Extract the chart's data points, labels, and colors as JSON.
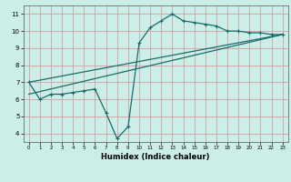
{
  "xlabel": "Humidex (Indice chaleur)",
  "bg_color": "#cceee8",
  "grid_color": "#d4a0a0",
  "line_color": "#1a6b6b",
  "xlim": [
    -0.5,
    23.5
  ],
  "ylim": [
    3.5,
    11.5
  ],
  "yticks": [
    4,
    5,
    6,
    7,
    8,
    9,
    10,
    11
  ],
  "xticks": [
    0,
    1,
    2,
    3,
    4,
    5,
    6,
    7,
    8,
    9,
    10,
    11,
    12,
    13,
    14,
    15,
    16,
    17,
    18,
    19,
    20,
    21,
    22,
    23
  ],
  "line1_x": [
    0,
    1,
    2,
    3,
    4,
    5,
    6,
    7,
    8,
    9,
    10,
    11,
    12,
    13,
    14,
    15,
    16,
    17,
    18,
    19,
    20,
    21,
    22,
    23
  ],
  "line1_y": [
    7.0,
    6.0,
    6.3,
    6.3,
    6.4,
    6.5,
    6.6,
    5.2,
    3.7,
    4.4,
    9.3,
    10.2,
    10.6,
    11.0,
    10.6,
    10.5,
    10.4,
    10.3,
    10.0,
    10.0,
    9.9,
    9.9,
    9.8,
    9.8
  ],
  "line2_x": [
    0,
    23
  ],
  "line2_y": [
    7.0,
    9.8
  ],
  "line3_x": [
    0,
    23
  ],
  "line3_y": [
    6.3,
    9.8
  ],
  "marker_size": 3.5,
  "line_width": 0.9
}
